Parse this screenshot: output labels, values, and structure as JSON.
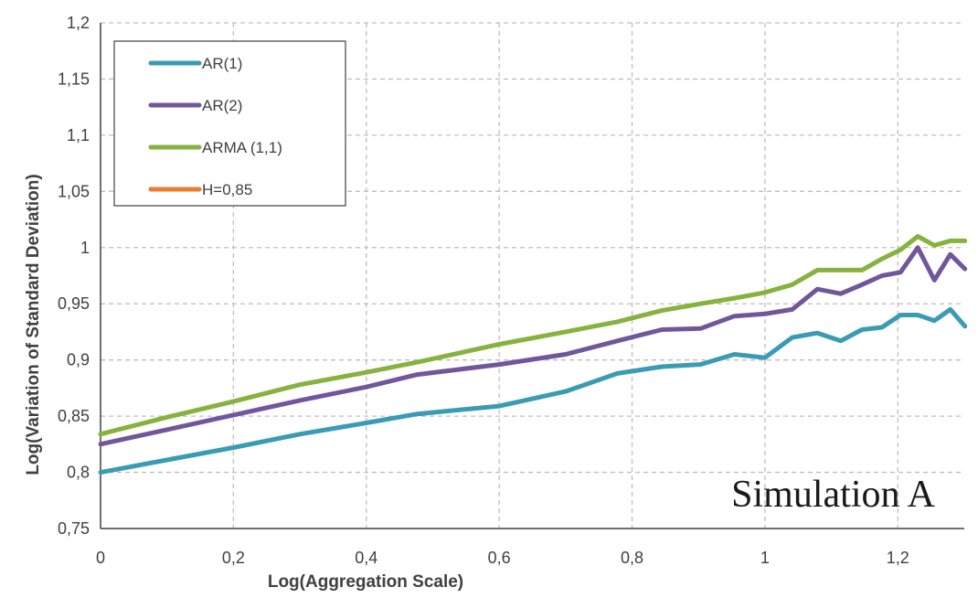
{
  "chart_data": {
    "type": "line",
    "title": "",
    "xlabel": "Log(Aggregation Scale)",
    "ylabel": "Log(Variation of Standard  Deviation)",
    "xlim": [
      0,
      1.3
    ],
    "ylim": [
      0.75,
      1.2
    ],
    "x_ticks": [
      {
        "value": 0,
        "label": "0"
      },
      {
        "value": 0.2,
        "label": "0,2"
      },
      {
        "value": 0.4,
        "label": "0,4"
      },
      {
        "value": 0.6,
        "label": "0,6"
      },
      {
        "value": 0.8,
        "label": "0,8"
      },
      {
        "value": 1.0,
        "label": "1"
      },
      {
        "value": 1.2,
        "label": "1,2"
      }
    ],
    "y_ticks": [
      {
        "value": 0.75,
        "label": "0,75"
      },
      {
        "value": 0.8,
        "label": "0,8"
      },
      {
        "value": 0.85,
        "label": "0,85"
      },
      {
        "value": 0.9,
        "label": "0,9"
      },
      {
        "value": 0.95,
        "label": "0,95"
      },
      {
        "value": 1.0,
        "label": "1"
      },
      {
        "value": 1.05,
        "label": "1,05"
      },
      {
        "value": 1.1,
        "label": "1,1"
      },
      {
        "value": 1.15,
        "label": "1,15"
      },
      {
        "value": 1.2,
        "label": "1,2"
      }
    ],
    "grid": true,
    "legend_position": "top-left",
    "annotation": "Simulation A",
    "series": [
      {
        "name": "AR(1)",
        "color": "#3a9bb4",
        "points": [
          [
            0,
            0.8
          ],
          [
            0.1,
            0.811
          ],
          [
            0.2,
            0.822
          ],
          [
            0.3,
            0.834
          ],
          [
            0.4,
            0.844
          ],
          [
            0.477,
            0.852
          ],
          [
            0.6,
            0.859
          ],
          [
            0.7,
            0.872
          ],
          [
            0.778,
            0.888
          ],
          [
            0.845,
            0.894
          ],
          [
            0.903,
            0.896
          ],
          [
            0.954,
            0.905
          ],
          [
            1.0,
            0.902
          ],
          [
            1.041,
            0.92
          ],
          [
            1.079,
            0.924
          ],
          [
            1.114,
            0.917
          ],
          [
            1.146,
            0.927
          ],
          [
            1.176,
            0.929
          ],
          [
            1.204,
            0.94
          ],
          [
            1.23,
            0.94
          ],
          [
            1.255,
            0.935
          ],
          [
            1.279,
            0.945
          ],
          [
            1.301,
            0.93
          ]
        ]
      },
      {
        "name": "AR(2)",
        "color": "#71569c",
        "points": [
          [
            0,
            0.825
          ],
          [
            0.1,
            0.838
          ],
          [
            0.2,
            0.851
          ],
          [
            0.3,
            0.864
          ],
          [
            0.4,
            0.876
          ],
          [
            0.477,
            0.887
          ],
          [
            0.6,
            0.896
          ],
          [
            0.7,
            0.905
          ],
          [
            0.778,
            0.917
          ],
          [
            0.845,
            0.927
          ],
          [
            0.903,
            0.928
          ],
          [
            0.954,
            0.939
          ],
          [
            1.0,
            0.941
          ],
          [
            1.041,
            0.945
          ],
          [
            1.079,
            0.963
          ],
          [
            1.114,
            0.959
          ],
          [
            1.146,
            0.967
          ],
          [
            1.176,
            0.975
          ],
          [
            1.204,
            0.978
          ],
          [
            1.23,
            1.0
          ],
          [
            1.255,
            0.971
          ],
          [
            1.279,
            0.994
          ],
          [
            1.301,
            0.981
          ]
        ]
      },
      {
        "name": "ARMA (1,1)",
        "color": "#86b23e",
        "points": [
          [
            0,
            0.834
          ],
          [
            0.1,
            0.849
          ],
          [
            0.2,
            0.863
          ],
          [
            0.3,
            0.878
          ],
          [
            0.4,
            0.889
          ],
          [
            0.477,
            0.898
          ],
          [
            0.6,
            0.914
          ],
          [
            0.7,
            0.925
          ],
          [
            0.778,
            0.934
          ],
          [
            0.845,
            0.944
          ],
          [
            0.903,
            0.95
          ],
          [
            0.954,
            0.955
          ],
          [
            1.0,
            0.96
          ],
          [
            1.041,
            0.967
          ],
          [
            1.079,
            0.98
          ],
          [
            1.114,
            0.98
          ],
          [
            1.146,
            0.98
          ],
          [
            1.176,
            0.99
          ],
          [
            1.204,
            0.998
          ],
          [
            1.23,
            1.01
          ],
          [
            1.255,
            1.002
          ],
          [
            1.279,
            1.006
          ],
          [
            1.301,
            1.006
          ]
        ]
      },
      {
        "name": "H=0,85",
        "color": "#e87d30",
        "points": []
      }
    ]
  }
}
